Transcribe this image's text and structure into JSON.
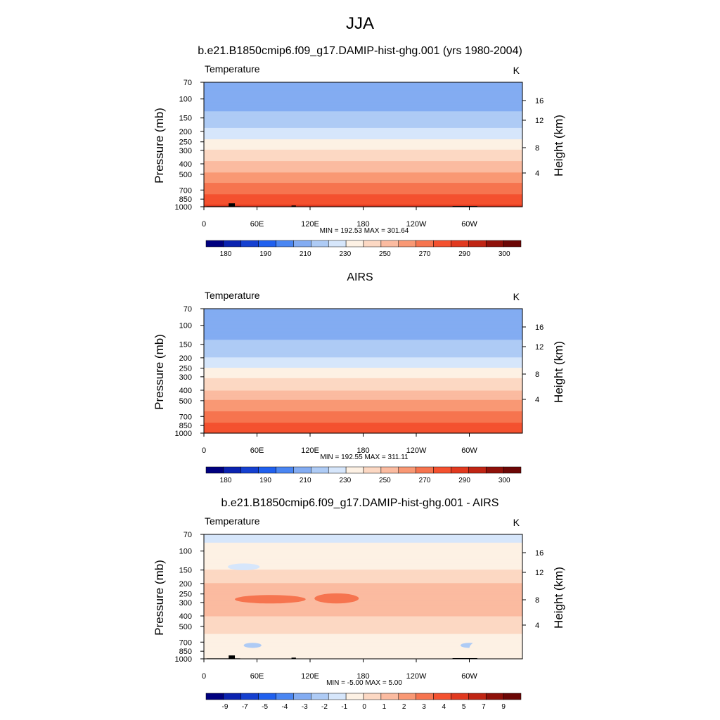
{
  "figure": {
    "season": "JJA",
    "panel_titles": [
      "b.e21.B1850cmip6.f09_g17.DAMIP-hist-ghg.001 (yrs 1980-2004)",
      "AIRS",
      "b.e21.B1850cmip6.f09_g17.DAMIP-hist-ghg.001 - AIRS"
    ]
  },
  "colors": {
    "abs_scale": [
      "#00007f",
      "#0b23b0",
      "#1540d0",
      "#2060ee",
      "#4a86f2",
      "#83acf2",
      "#aecbf5",
      "#d6e6fb",
      "#fdf1e4",
      "#fcd8c3",
      "#fbbba0",
      "#f99874",
      "#f6744f",
      "#f4512f",
      "#e1391f",
      "#c02514",
      "#8f110a",
      "#6c0706"
    ],
    "diff_scale": [
      "#00007f",
      "#0b23b0",
      "#1540d0",
      "#2060ee",
      "#4a86f2",
      "#83acf2",
      "#aecbf5",
      "#d6e6fb",
      "#fdf1e4",
      "#fcd8c3",
      "#fbbba0",
      "#f99874",
      "#f6744f",
      "#f4512f",
      "#e1391f",
      "#c02514",
      "#8f110a",
      "#6c0706"
    ],
    "land": "#000000"
  },
  "chart_data": [
    {
      "type": "heatmap",
      "title": "b.e21.B1850cmip6.f09_g17.DAMIP-hist-ghg.001 (yrs 1980-2004)",
      "field_label": "Temperature",
      "units": "K",
      "ylabel": "Pressure (mb)",
      "ylabel_right": "Height (km)",
      "xticks": [
        "0",
        "60E",
        "120E",
        "180",
        "120W",
        "60W"
      ],
      "yticks": [
        "70",
        "100",
        "150",
        "200",
        "250",
        "300",
        "400",
        "500",
        "700",
        "850",
        "1000"
      ],
      "yticks_right": [
        "16",
        "12",
        "8",
        "4"
      ],
      "stats": "MIN = 192.53  MAX = 301.64",
      "colorbar_labels": [
        "180",
        "190",
        "210",
        "230",
        "250",
        "270",
        "290",
        "300"
      ],
      "levels": [
        {
          "p": 70,
          "v": 203
        },
        {
          "p": 100,
          "v": 204
        },
        {
          "p": 150,
          "v": 213
        },
        {
          "p": 200,
          "v": 222
        },
        {
          "p": 250,
          "v": 232
        },
        {
          "p": 300,
          "v": 241
        },
        {
          "p": 400,
          "v": 252
        },
        {
          "p": 500,
          "v": 262
        },
        {
          "p": 700,
          "v": 276
        },
        {
          "p": 850,
          "v": 284
        },
        {
          "p": 1000,
          "v": 292
        }
      ],
      "topography": true
    },
    {
      "type": "heatmap",
      "title": "AIRS",
      "field_label": "Temperature",
      "units": "K",
      "ylabel": "Pressure (mb)",
      "ylabel_right": "Height (km)",
      "xticks": [
        "0",
        "60E",
        "120E",
        "180",
        "120W",
        "60W"
      ],
      "yticks": [
        "70",
        "100",
        "150",
        "200",
        "250",
        "300",
        "400",
        "500",
        "700",
        "850",
        "1000"
      ],
      "yticks_right": [
        "16",
        "12",
        "8",
        "4"
      ],
      "stats": "MIN = 192.55  MAX = 311.11",
      "colorbar_labels": [
        "180",
        "190",
        "210",
        "230",
        "250",
        "270",
        "290",
        "300"
      ],
      "levels": [
        {
          "p": 70,
          "v": 202
        },
        {
          "p": 100,
          "v": 204
        },
        {
          "p": 150,
          "v": 212
        },
        {
          "p": 200,
          "v": 220
        },
        {
          "p": 250,
          "v": 230
        },
        {
          "p": 300,
          "v": 239
        },
        {
          "p": 400,
          "v": 250
        },
        {
          "p": 500,
          "v": 261
        },
        {
          "p": 700,
          "v": 274
        },
        {
          "p": 850,
          "v": 282
        },
        {
          "p": 1000,
          "v": 290
        }
      ],
      "topography": false
    },
    {
      "type": "heatmap",
      "title": "b.e21.B1850cmip6.f09_g17.DAMIP-hist-ghg.001 - AIRS",
      "field_label": "Temperature",
      "units": "K",
      "ylabel": "Pressure (mb)",
      "ylabel_right": "Height (km)",
      "xticks": [
        "0",
        "60E",
        "120E",
        "180",
        "120W",
        "60W"
      ],
      "yticks": [
        "70",
        "100",
        "150",
        "200",
        "250",
        "300",
        "400",
        "500",
        "700",
        "850",
        "1000"
      ],
      "yticks_right": [
        "16",
        "12",
        "8",
        "4"
      ],
      "stats": "MIN =  -5.00  MAX =   5.00",
      "colorbar_labels": [
        "-9",
        "-7",
        "-5",
        "-4",
        "-3",
        "-2",
        "-1",
        "0",
        "1",
        "2",
        "3",
        "4",
        "5",
        "7",
        "9"
      ],
      "levels": [
        {
          "p": 70,
          "v": -0.5
        },
        {
          "p": 100,
          "v": 0.5
        },
        {
          "p": 150,
          "v": 1.0
        },
        {
          "p": 200,
          "v": 2.0
        },
        {
          "p": 250,
          "v": 2.5
        },
        {
          "p": 300,
          "v": 2.0
        },
        {
          "p": 400,
          "v": 2.0
        },
        {
          "p": 500,
          "v": 1.5
        },
        {
          "p": 700,
          "v": 0.5
        },
        {
          "p": 850,
          "v": 0.5
        },
        {
          "p": 1000,
          "v": 0.5
        }
      ],
      "topography": true
    }
  ]
}
